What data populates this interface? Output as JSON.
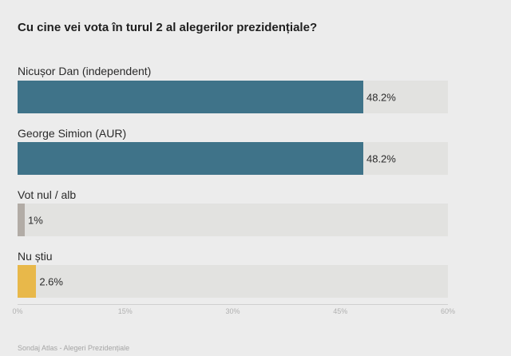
{
  "title": "Cu cine vei vota în turul 2 al alegerilor prezidențiale?",
  "source": "Sondaj Atlas - Alegeri Prezidențiale",
  "chart_data": {
    "type": "bar",
    "orientation": "horizontal",
    "categories": [
      "Nicușor Dan (independent)",
      "George Simion (AUR)",
      "Vot nul / alb",
      "Nu știu"
    ],
    "values": [
      48.2,
      48.2,
      1,
      2.6
    ],
    "value_labels": [
      "48.2%",
      "48.2%",
      "1%",
      "2.6%"
    ],
    "colors": [
      "#3f7389",
      "#3f7389",
      "#b2aca6",
      "#e8b84a"
    ],
    "track_color": "#e2e2e0",
    "xlim": [
      0,
      60
    ],
    "xticks": [
      "0%",
      "15%",
      "30%",
      "45%",
      "60%"
    ],
    "grid": false
  }
}
